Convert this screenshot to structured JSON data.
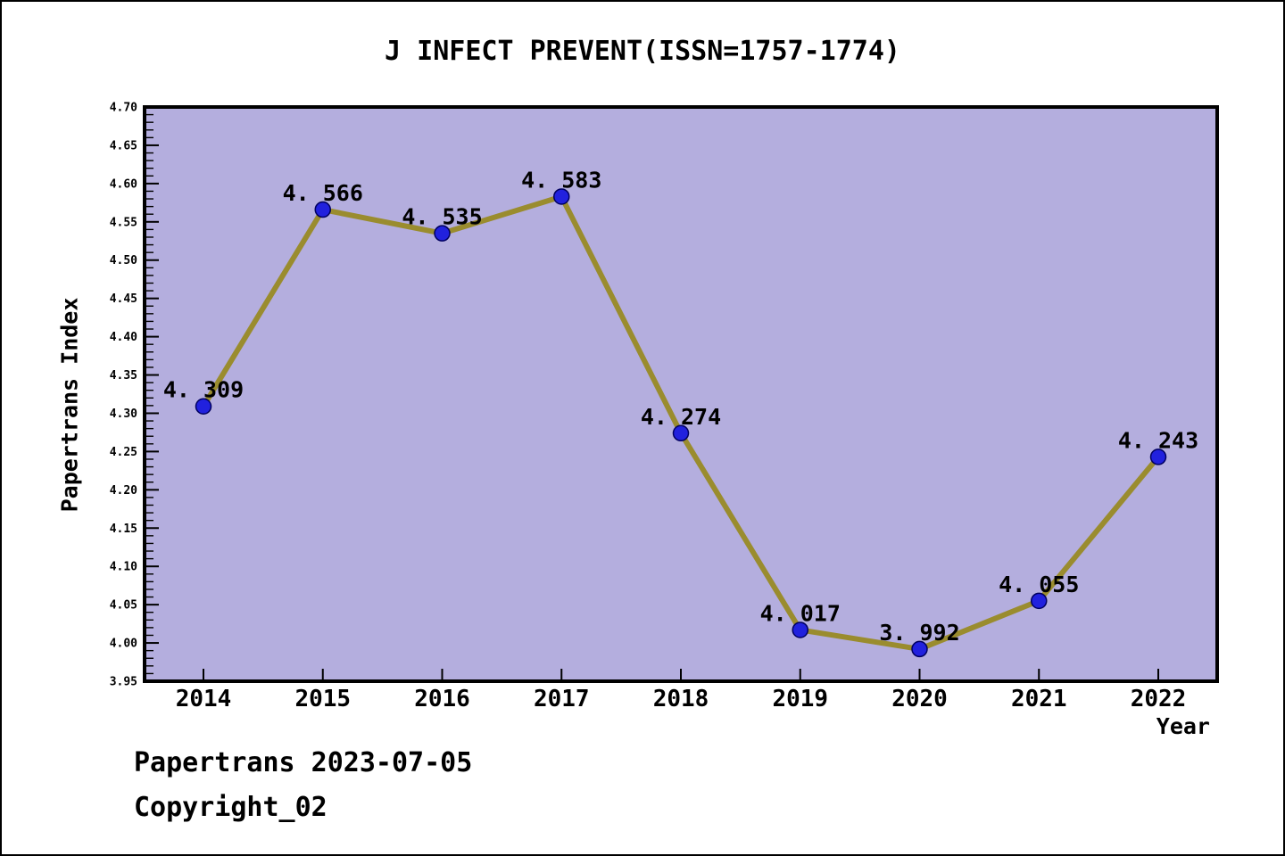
{
  "title": "J INFECT PREVENT(ISSN=1757-1774)",
  "footer": {
    "line1": "Papertrans 2023-07-05",
    "line2": "Copyright_02"
  },
  "chart_data": {
    "type": "line",
    "title": "J INFECT PREVENT(ISSN=1757-1774)",
    "xlabel": "Year",
    "ylabel": "Papertrans Index",
    "categories": [
      2014,
      2015,
      2016,
      2017,
      2018,
      2019,
      2020,
      2021,
      2022
    ],
    "values": [
      4.309,
      4.566,
      4.535,
      4.583,
      4.274,
      4.017,
      3.992,
      4.055,
      4.243
    ],
    "point_labels": [
      "4. 309",
      "4. 566",
      "4. 535",
      "4. 583",
      "4. 274",
      "4. 017",
      "3. 992",
      "4. 055",
      "4. 243"
    ],
    "ylim": [
      3.95,
      4.7
    ],
    "ytick_labels": [
      "3.95",
      "4.00",
      "4.05",
      "4.10",
      "4.15",
      "4.20",
      "4.25",
      "4.30",
      "4.35",
      "4.40",
      "4.45",
      "4.50",
      "4.55",
      "4.60",
      "4.65",
      "4.70"
    ],
    "ytick_major_step": 0.05,
    "ytick_minor_step": 0.01,
    "grid": false,
    "legend": null,
    "colors": {
      "plot_background": "#b4aede",
      "line": "#9a8c2e",
      "marker_fill": "#2121de",
      "marker_edge": "#000060",
      "axis": "#000000",
      "text": "#000000"
    }
  }
}
